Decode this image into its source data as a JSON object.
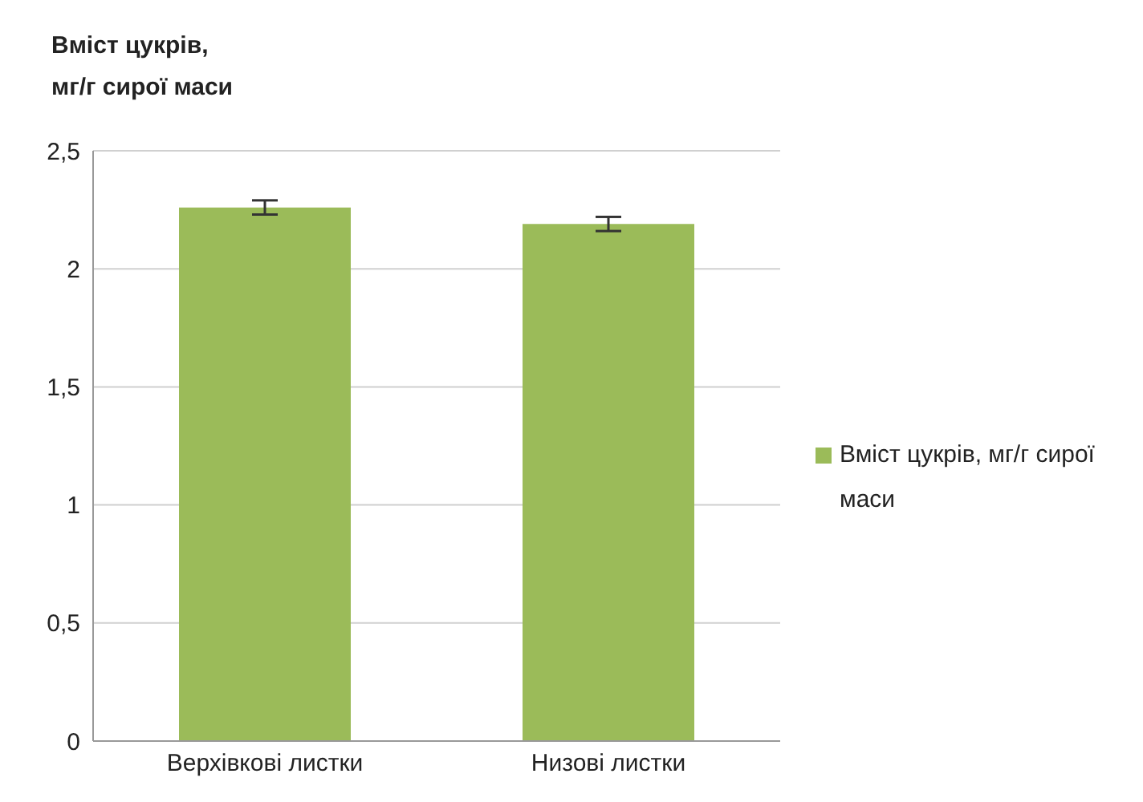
{
  "chart_data": {
    "type": "bar",
    "ylabel": "Вміст цукрів, мг/г сирої маси",
    "categories": [
      "Верхівкові листки",
      "Низові листки"
    ],
    "series": [
      {
        "name": "Вміст цукрів, мг/г сирої маси",
        "color": "#9bbb59",
        "values": [
          2.26,
          2.19
        ],
        "errors": [
          0.03,
          0.03
        ]
      }
    ],
    "ylim": [
      0,
      2.5
    ],
    "yticks": [
      0,
      {
        "value": 0.5,
        "label": "0,5"
      },
      1,
      {
        "value": 1.5,
        "label": "1,5"
      },
      2,
      {
        "value": 2.5,
        "label": "2,5"
      }
    ],
    "grid": "y",
    "legend": "right"
  }
}
